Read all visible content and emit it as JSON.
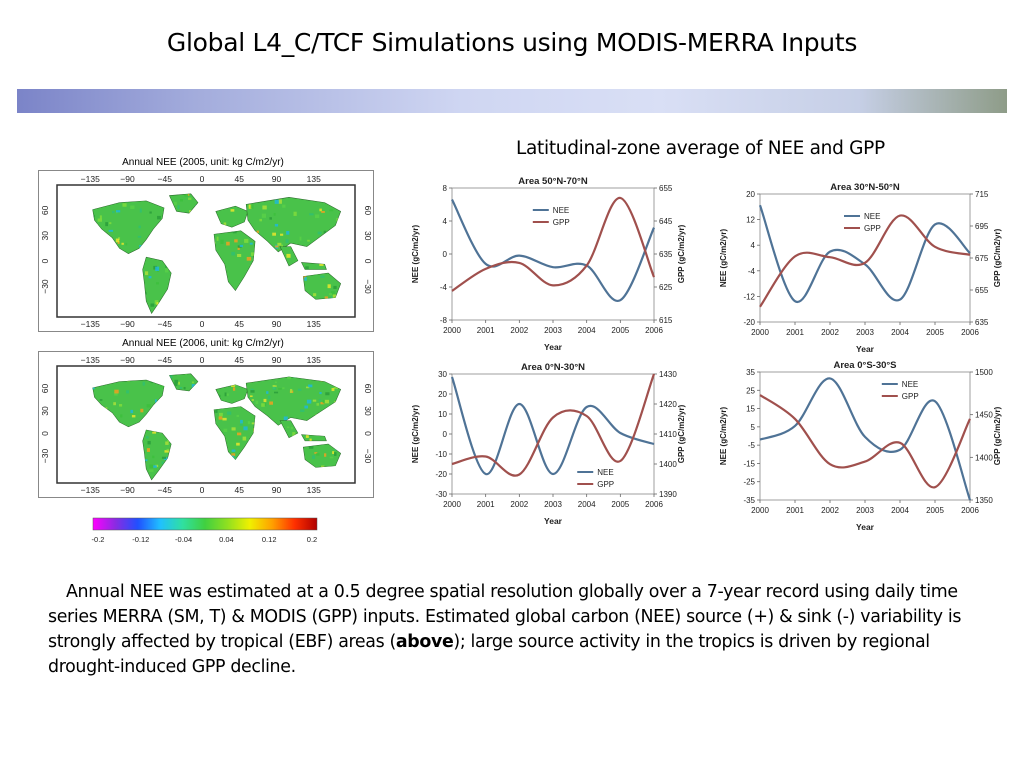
{
  "slide": {
    "title": "Global L4_C/TCF Simulations using MODIS-MERRA Inputs",
    "subtitle": "Latitudinal-zone average of NEE and GPP",
    "paragraph_before": "Annual NEE was estimated at a 0.5 degree spatial resolution globally over a 7-year record using daily time series MERRA (SM, T) & MODIS (GPP) inputs. Estimated global carbon (NEE) source (+) & sink (-) variability is strongly affected by tropical (EBF) areas (",
    "paragraph_bold": "above",
    "paragraph_after": "); large source activity in the tropics is driven by regional drought-induced GPP decline."
  },
  "maps": [
    {
      "title": "Annual NEE (2005, unit: kg C/m2/yr)"
    },
    {
      "title": "Annual NEE (2006, unit: kg C/m2/yr)"
    }
  ],
  "map_axes": {
    "lon_ticks": [
      "−135",
      "−90",
      "−45",
      "0",
      "45",
      "90",
      "135"
    ],
    "lat_ticks_left": [
      "60",
      "30",
      "0",
      "−30"
    ],
    "lat_ticks_right": [
      "60",
      "30",
      "0",
      "−30"
    ]
  },
  "colorbar": {
    "labels": [
      "-0.2",
      "-0.12",
      "-0.04",
      "0.04",
      "0.12",
      "0.2"
    ],
    "colors": [
      "#ff00ff",
      "#8a2be2",
      "#2050ff",
      "#20c0ff",
      "#30e0a0",
      "#40d040",
      "#90e020",
      "#f0f000",
      "#ffa000",
      "#ff3000",
      "#b00000"
    ]
  },
  "colors": {
    "nee": "#4f7396",
    "gpp": "#a0504d"
  },
  "chart_data": [
    {
      "type": "line",
      "title": "Area 50°N-70°N",
      "xlabel": "Year",
      "ylabel": "NEE (gC/m2/yr)",
      "y2label": "GPP (gC/m2/yr)",
      "x": [
        2000,
        2001,
        2002,
        2003,
        2004,
        2005,
        2006
      ],
      "ylim": [
        -8,
        8
      ],
      "yticks": [
        -8,
        -4,
        0,
        4,
        8
      ],
      "y2lim": [
        615,
        655
      ],
      "y2ticks": [
        615,
        625,
        635,
        645,
        655
      ],
      "legend": "top-center",
      "series": [
        {
          "name": "NEE",
          "axis": "left",
          "values": [
            6.6,
            -1.2,
            -0.2,
            -1.6,
            -1.4,
            -5.6,
            3.2
          ]
        },
        {
          "name": "GPP",
          "axis": "right",
          "values": [
            623.8,
            630.5,
            632.3,
            625.5,
            631.5,
            652.0,
            628.0
          ]
        }
      ]
    },
    {
      "type": "line",
      "title": "Area 30°N-50°N",
      "xlabel": "Year",
      "ylabel": "NEE (gC/m2/yr)",
      "y2label": "GPP (gC/m2/yr)",
      "x": [
        2000,
        2001,
        2002,
        2003,
        2004,
        2005,
        2006
      ],
      "ylim": [
        -20,
        20
      ],
      "yticks": [
        -20,
        -12,
        -4,
        4,
        12,
        20
      ],
      "y2lim": [
        635,
        715
      ],
      "y2ticks": [
        635,
        655,
        675,
        695,
        715
      ],
      "legend": "top-center",
      "series": [
        {
          "name": "NEE",
          "axis": "left",
          "values": [
            16.5,
            -13.5,
            2.0,
            -2.0,
            -13.0,
            10.5,
            1.5
          ]
        },
        {
          "name": "GPP",
          "axis": "right",
          "values": [
            644.5,
            676.0,
            675.5,
            672.0,
            701.5,
            682.0,
            677.0
          ]
        }
      ]
    },
    {
      "type": "line",
      "title": "Area 0°N-30°N",
      "xlabel": "Year",
      "ylabel": "NEE (gC/m2/yr)",
      "y2label": "GPP (gC/m2/yr)",
      "x": [
        2000,
        2001,
        2002,
        2003,
        2004,
        2005,
        2006
      ],
      "ylim": [
        -30,
        30
      ],
      "yticks": [
        -30,
        -20,
        -10,
        0,
        10,
        20,
        30
      ],
      "y2lim": [
        1390,
        1430
      ],
      "y2ticks": [
        1390,
        1400,
        1410,
        1420,
        1430
      ],
      "legend": "bottom-right",
      "series": [
        {
          "name": "NEE",
          "axis": "left",
          "values": [
            28.5,
            -20.0,
            15.0,
            -20.0,
            13.5,
            0.5,
            -5.0
          ]
        },
        {
          "name": "GPP",
          "axis": "right",
          "values": [
            1400.0,
            1402.5,
            1396.5,
            1415.5,
            1416.0,
            1401.0,
            1430.0
          ]
        }
      ]
    },
    {
      "type": "line",
      "title": "Area 0°S-30°S",
      "xlabel": "Year",
      "ylabel": "NEE (gC/m2/yr)",
      "y2label": "GPP (gC/m2/yr)",
      "x": [
        2000,
        2001,
        2002,
        2003,
        2004,
        2005,
        2006
      ],
      "ylim": [
        -35,
        35
      ],
      "yticks": [
        -35,
        -25,
        -15,
        -5,
        5,
        15,
        25,
        35
      ],
      "y2lim": [
        1350,
        1500
      ],
      "y2ticks": [
        1350,
        1400,
        1450,
        1500
      ],
      "legend": "top-right",
      "series": [
        {
          "name": "NEE",
          "axis": "left",
          "values": [
            -2.0,
            5.5,
            31.5,
            -0.5,
            -7.5,
            19.0,
            -35.0
          ]
        },
        {
          "name": "GPP",
          "axis": "right",
          "values": [
            1473.0,
            1445.0,
            1392.0,
            1395.0,
            1417.0,
            1365.0,
            1445.0
          ]
        }
      ]
    }
  ]
}
